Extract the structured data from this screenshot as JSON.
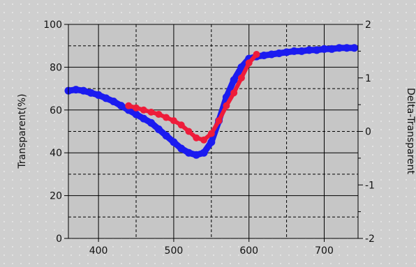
{
  "chart_data": {
    "type": "scatter",
    "title": "",
    "xlabel": "",
    "ylabel": "Transparent(%)",
    "y2label": "Delta-Transparent",
    "xlim": [
      360,
      745
    ],
    "ylim": [
      0,
      100
    ],
    "y2lim": [
      -2,
      2
    ],
    "grid": true,
    "legend": "none",
    "x_ticks": [
      "400",
      "500",
      "600",
      "700"
    ],
    "x_tick_values": [
      400,
      500,
      600,
      700
    ],
    "y_ticks": [
      "0",
      "20",
      "40",
      "60",
      "80",
      "100"
    ],
    "y_tick_values": [
      0,
      20,
      40,
      60,
      80,
      100
    ],
    "y2_ticks": [
      "-2",
      "-1",
      "0",
      "1",
      "2"
    ],
    "y2_tick_values": [
      -2,
      -1,
      0,
      1,
      2
    ],
    "series": [
      {
        "color": "#1b1bf0",
        "marker": "filled-circle",
        "x": [
          360,
          370,
          380,
          390,
          400,
          410,
          420,
          430,
          440,
          450,
          460,
          470,
          480,
          490,
          500,
          510,
          520,
          530,
          540,
          550,
          560,
          570,
          580,
          590,
          600,
          610,
          620,
          630,
          640,
          650,
          660,
          670,
          680,
          690,
          700,
          710,
          720,
          730,
          740
        ],
        "y": [
          69,
          69.5,
          69,
          68,
          67,
          65.5,
          64,
          62,
          60,
          58,
          56,
          54,
          51,
          48,
          45,
          42,
          40,
          39,
          40,
          45,
          55,
          66,
          74,
          80,
          84,
          85,
          85.5,
          86,
          86.5,
          87,
          87.5,
          87.5,
          88,
          88,
          88.5,
          88.5,
          89,
          89,
          89
        ]
      },
      {
        "color": "#ee1c3a",
        "marker": "filled-circle",
        "x": [
          440,
          450,
          460,
          470,
          480,
          490,
          500,
          510,
          520,
          530,
          540,
          550,
          560,
          570,
          580,
          590,
          600,
          610
        ],
        "y": [
          62,
          61,
          60,
          59,
          58,
          56.5,
          55,
          53,
          50,
          47,
          46,
          49,
          55,
          62,
          68,
          75,
          82,
          86
        ]
      }
    ]
  }
}
